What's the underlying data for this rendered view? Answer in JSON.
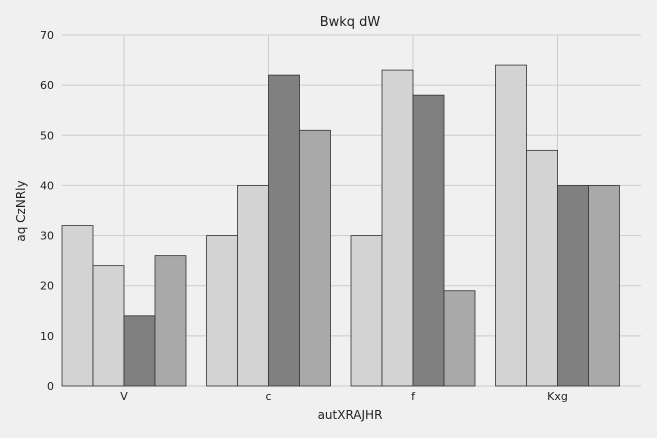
{
  "chart_data": {
    "type": "bar",
    "title": "Bwkq dW",
    "xlabel": "autXRAJHR",
    "ylabel": "aq CzNRly",
    "categories": [
      "V",
      "c",
      "f",
      "Kxg"
    ],
    "series": [
      {
        "values": [
          32,
          30,
          30,
          64
        ],
        "color": "#d3d3d3"
      },
      {
        "values": [
          24,
          40,
          63,
          47
        ],
        "color": "#d3d3d3"
      },
      {
        "values": [
          14,
          62,
          58,
          40
        ],
        "color": "#808080"
      },
      {
        "values": [
          26,
          51,
          19,
          40
        ],
        "color": "#a9a9a9"
      }
    ],
    "ylim": [
      0,
      70
    ],
    "yticks": [
      0,
      10,
      20,
      30,
      40,
      50,
      60,
      70
    ],
    "grid": true,
    "legend": "none",
    "background": "#f0f0f0"
  }
}
